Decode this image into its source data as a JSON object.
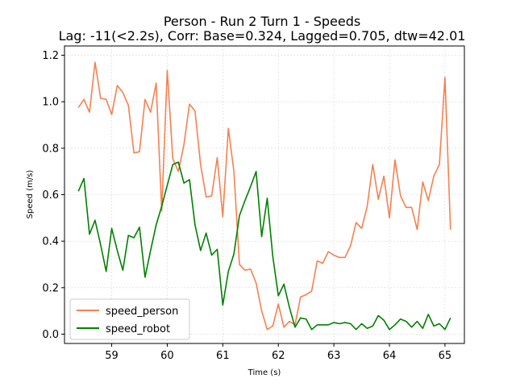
{
  "chart_data": {
    "type": "line",
    "title": "Person - Run 2 Turn 1 - Speeds",
    "subtitle": "Lag: -11(<2.2s), Corr: Base=0.324, Lagged=0.705, dtw=42.01",
    "xlabel": "Time (s)",
    "ylabel": "Speed (m/s)",
    "xlim": [
      58.15,
      65.35
    ],
    "ylim": [
      -0.04,
      1.24
    ],
    "xticks": [
      59,
      60,
      61,
      62,
      63,
      64,
      65
    ],
    "yticks": [
      0.0,
      0.2,
      0.4,
      0.6,
      0.8,
      1.0,
      1.2
    ],
    "grid": true,
    "legend_position": "lower-left",
    "x_start": 58.4,
    "x_step": 0.1,
    "series": [
      {
        "name": "speed_person",
        "color": "#f58151",
        "values": [
          0.975,
          1.01,
          0.955,
          1.17,
          1.015,
          1.01,
          0.945,
          1.07,
          1.04,
          0.985,
          0.78,
          0.785,
          1.01,
          0.955,
          1.08,
          0.53,
          1.135,
          0.755,
          0.7,
          0.815,
          0.99,
          0.96,
          0.73,
          0.59,
          0.595,
          0.76,
          0.505,
          0.885,
          0.7,
          0.3,
          0.275,
          0.28,
          0.22,
          0.1,
          0.02,
          0.035,
          0.13,
          0.03,
          0.055,
          0.04,
          0.16,
          0.17,
          0.185,
          0.315,
          0.305,
          0.355,
          0.34,
          0.33,
          0.33,
          0.38,
          0.48,
          0.455,
          0.55,
          0.73,
          0.58,
          0.68,
          0.5,
          0.75,
          0.595,
          0.545,
          0.545,
          0.45,
          0.655,
          0.575,
          0.68,
          0.73,
          1.105,
          0.45
        ]
      },
      {
        "name": "speed_robot",
        "color": "#008000",
        "values": [
          0.615,
          0.67,
          0.43,
          0.49,
          0.385,
          0.27,
          0.455,
          0.36,
          0.275,
          0.425,
          0.415,
          0.46,
          0.245,
          0.36,
          0.47,
          0.55,
          0.64,
          0.73,
          0.74,
          0.65,
          0.665,
          0.47,
          0.36,
          0.435,
          0.34,
          0.365,
          0.125,
          0.27,
          0.345,
          0.51,
          0.575,
          0.635,
          0.7,
          0.42,
          0.585,
          0.335,
          0.165,
          0.215,
          0.115,
          0.03,
          0.07,
          0.065,
          0.02,
          0.04,
          0.04,
          0.04,
          0.05,
          0.045,
          0.05,
          0.045,
          0.02,
          0.045,
          0.025,
          0.035,
          0.08,
          0.06,
          0.02,
          0.04,
          0.065,
          0.055,
          0.03,
          0.055,
          0.025,
          0.085,
          0.035,
          0.045,
          0.02,
          0.07
        ]
      }
    ]
  }
}
